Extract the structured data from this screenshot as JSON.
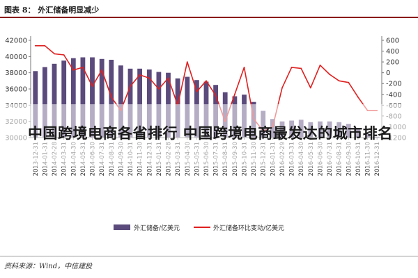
{
  "header": {
    "title": "图表 8： 外汇储备明显减少"
  },
  "headline": "中国跨境电商各省排行 中国跨境电商最发达的城市排名",
  "footer": {
    "source": "资料来源：Wind，中信建投"
  },
  "colors": {
    "bars": "#5b4a7c",
    "line": "#e02020",
    "header_rule": "#8b1a1a"
  },
  "chart_data": {
    "type": "bar",
    "categories": [
      "2013-12-31",
      "2014-01-31",
      "2014-02-28",
      "2014-03-31",
      "2014-04-30",
      "2014-05-31",
      "2014-06-30",
      "2014-07-31",
      "2014-08-31",
      "2014-09-30",
      "2014-10-31",
      "2014-11-30",
      "2014-12-31",
      "2015-01-31",
      "2015-02-28",
      "2015-03-31",
      "2015-04-30",
      "2015-05-31",
      "2015-06-30",
      "2015-07-31",
      "2015-08-31",
      "2015-09-30",
      "2015-10-31",
      "2015-11-30",
      "2015-12-31",
      "2016-01-31",
      "2016-02-29",
      "2016-03-31",
      "2016-04-30",
      "2016-05-31",
      "2016-06-30",
      "2016-07-31",
      "2016-08-31",
      "2016-09-30",
      "2016-10-31",
      "2016-11-30",
      "2016-12-31"
    ],
    "series": [
      {
        "name": "外汇储备/亿美元",
        "type": "bar",
        "axis": "left",
        "values": [
          38200,
          38700,
          39100,
          39500,
          39800,
          39900,
          39900,
          39700,
          39600,
          38900,
          38500,
          38500,
          38400,
          38100,
          38000,
          37300,
          37500,
          37100,
          36900,
          36500,
          35600,
          35100,
          35300,
          34400,
          33300,
          32300,
          32000,
          32100,
          32200,
          31900,
          32000,
          32000,
          31900,
          31700,
          31200,
          30500,
          30100
        ]
      },
      {
        "name": "外汇储备环比变动/亿美元",
        "type": "line",
        "axis": "right",
        "values": [
          500,
          500,
          350,
          330,
          50,
          100,
          -250,
          50,
          -450,
          -700,
          -250,
          -40,
          -100,
          -300,
          -100,
          -600,
          200,
          -350,
          -150,
          -420,
          -900,
          -400,
          100,
          -850,
          -1080,
          -1000,
          -280,
          100,
          80,
          -280,
          140,
          -30,
          -150,
          -180,
          -450,
          -700,
          -700
        ]
      }
    ],
    "title": "",
    "xlabel": "",
    "ylabel": "",
    "ylim": [
      30000,
      42000
    ],
    "yticks": [
      30000,
      32000,
      34000,
      36000,
      38000,
      40000,
      42000
    ],
    "ylim_right": [
      -1200,
      600
    ],
    "yticks_right": [
      -1200,
      -1000,
      -800,
      -600,
      -400,
      -200,
      0,
      200,
      400,
      600
    ],
    "grid": false,
    "legend": "bottom"
  }
}
